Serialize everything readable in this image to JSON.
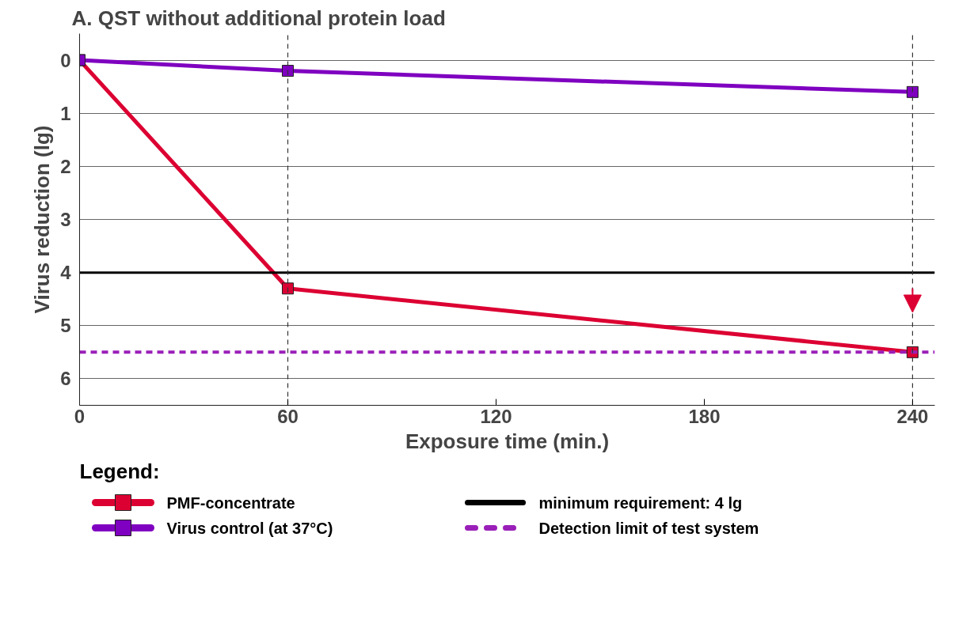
{
  "chart_data": {
    "type": "line",
    "title": "A. QST without additional protein load",
    "xlabel": "Exposure time (min.)",
    "ylabel": "Virus reduction (lg)",
    "legend_title": "Legend:",
    "x": [
      0,
      60,
      240
    ],
    "series": [
      {
        "name": "PMF-concentrate",
        "color": "#dc0032",
        "values": [
          0,
          4.3,
          5.5
        ]
      },
      {
        "name": "Virus control (at 37°C)",
        "color": "#7f00c0",
        "values": [
          0,
          0.2,
          0.6
        ]
      }
    ],
    "ref_lines": [
      {
        "axis": "y",
        "value": 4,
        "label": "minimum requirement: 4 lg",
        "color": "#000000",
        "line_style": "solid"
      },
      {
        "axis": "y",
        "value": 5.5,
        "label": "Detection limit of test system",
        "color": "#9a1fb8",
        "line_style": "dashed"
      },
      {
        "axis": "x",
        "value": 60,
        "label": null,
        "color": "#333333",
        "line_style": "dashed"
      },
      {
        "axis": "x",
        "value": 240,
        "label": null,
        "color": "#333333",
        "line_style": "dashed"
      }
    ],
    "xlim": [
      0,
      246.4
    ],
    "ylim": [
      6.5,
      -0.5
    ],
    "xticks": [
      0,
      60,
      120,
      180,
      240
    ],
    "yticks": [
      0,
      1,
      2,
      3,
      4,
      5,
      6
    ],
    "grid": "y",
    "legend": "bottom",
    "marker": "square",
    "line_style": "solid"
  }
}
